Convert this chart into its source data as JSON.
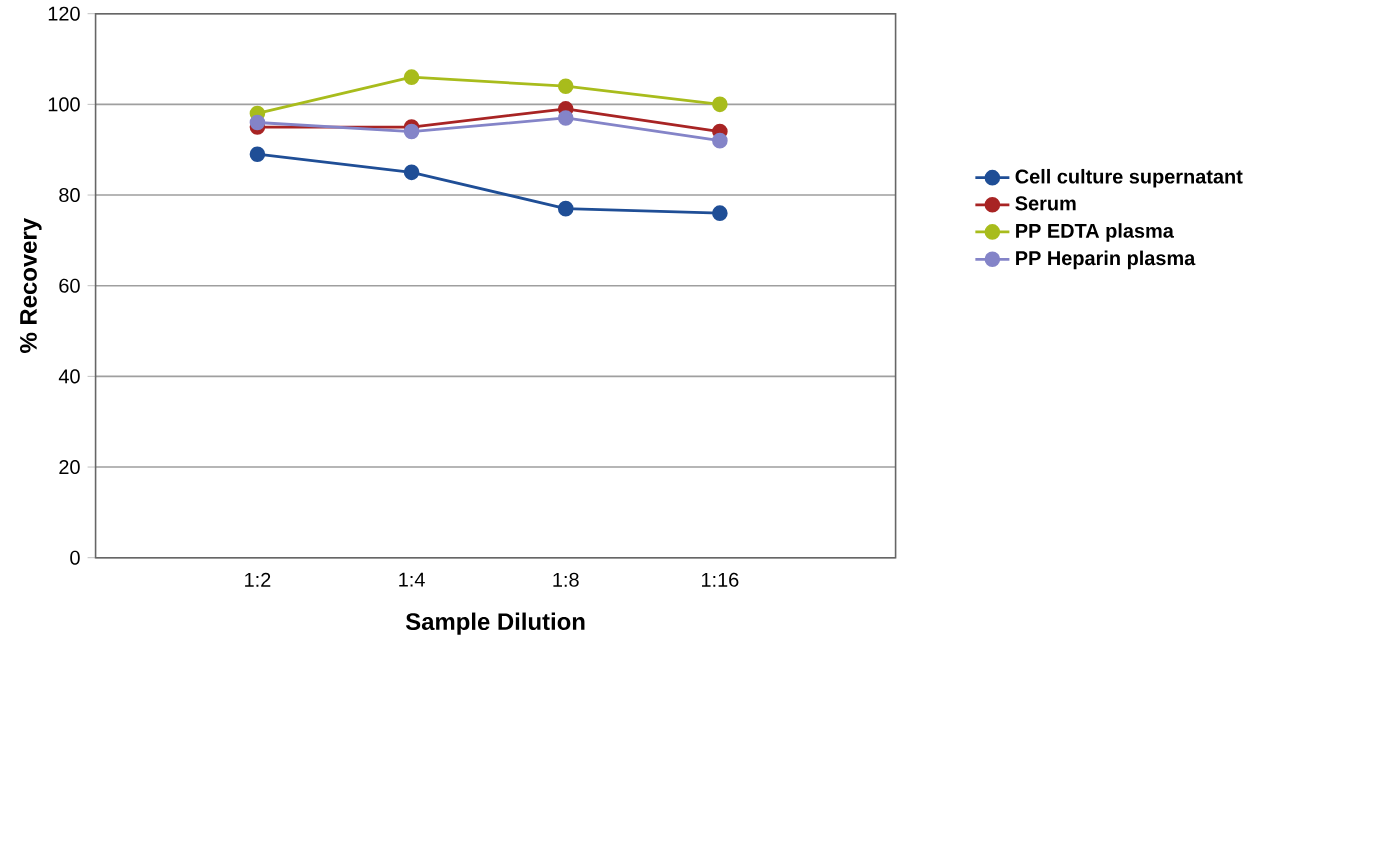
{
  "chart_data": {
    "type": "line",
    "xlabel": "Sample Dilution",
    "ylabel": "% Recovery",
    "categories": [
      "1:2",
      "1:4",
      "1:8",
      "1:16"
    ],
    "series": [
      {
        "name": "Cell culture supernatant",
        "color": "#1f4e96",
        "values": [
          89,
          85,
          77,
          76
        ]
      },
      {
        "name": "Serum",
        "color": "#a82424",
        "values": [
          95,
          95,
          99,
          94
        ]
      },
      {
        "name": "PP EDTA plasma",
        "color": "#a8bc1c",
        "values": [
          98,
          106,
          104,
          100
        ]
      },
      {
        "name": "PP Heparin plasma",
        "color": "#8484c8",
        "values": [
          96,
          94,
          97,
          92
        ]
      }
    ],
    "ylim": [
      0,
      120
    ],
    "yticks": [
      0,
      20,
      40,
      60,
      80,
      100,
      120
    ],
    "grid": "y",
    "legend": "right",
    "marker": "circle"
  }
}
